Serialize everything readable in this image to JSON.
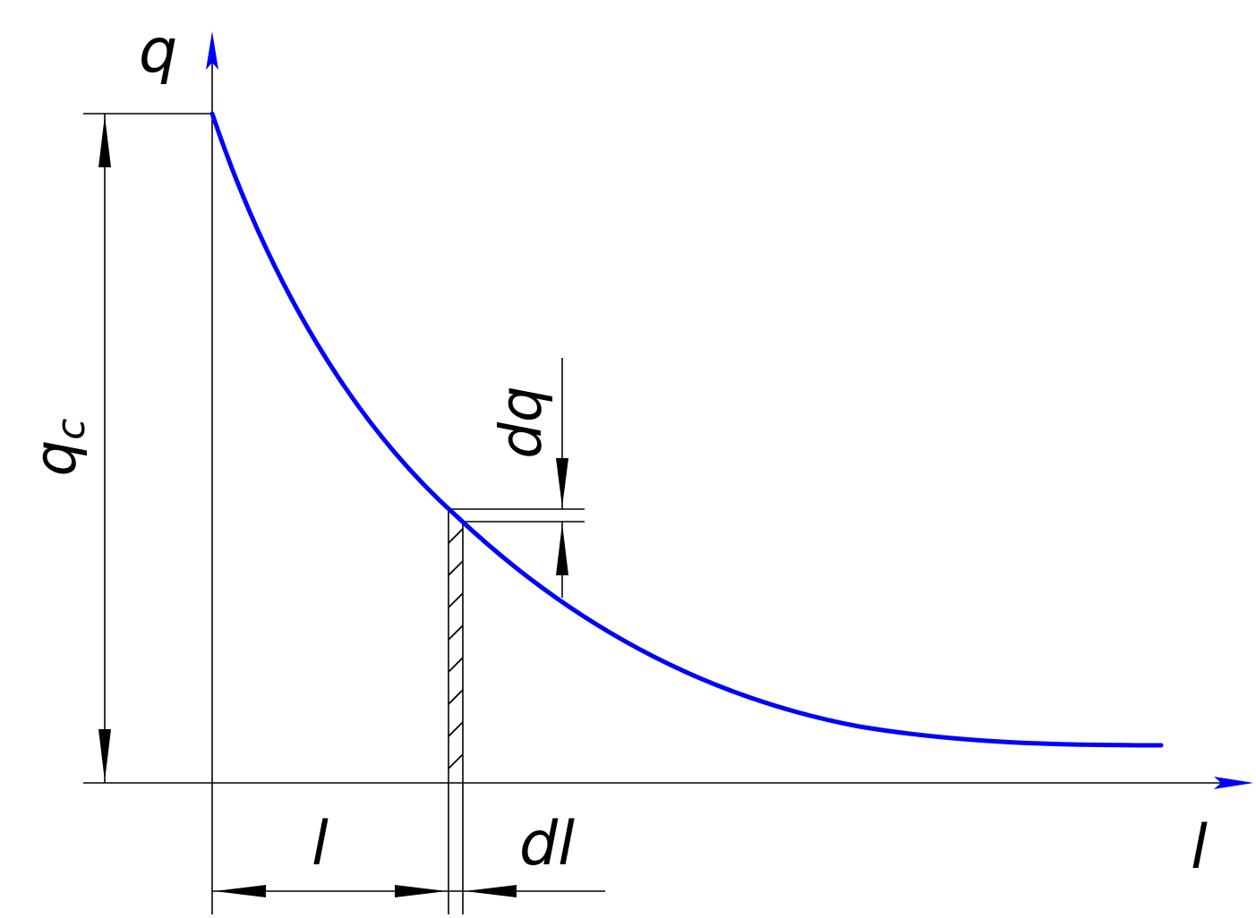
{
  "axes": {
    "y_label": "q",
    "x_label": "l"
  },
  "dimensions": {
    "initial_flow": "q",
    "initial_flow_subscript": "c",
    "length": "l",
    "length_increment": "dl",
    "flow_increment": "dq"
  },
  "colors": {
    "curve": "#0000ff",
    "axis_arrow": "#0000ff",
    "lines": "#000000",
    "background": "#ffffff"
  }
}
